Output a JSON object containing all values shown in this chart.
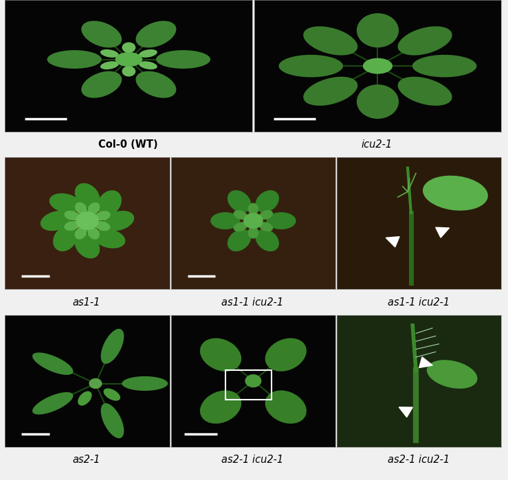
{
  "figure_width": 7.39,
  "figure_height": 6.99,
  "background_color": "#f0f0f0",
  "bg_colors": {
    "0_0": "#050505",
    "0_1": "#050505",
    "1_0": "#3a2010",
    "1_1": "#352010",
    "1_2": "#2a1a0a",
    "2_0": "#050505",
    "2_1": "#050505",
    "2_2": "#1a2a10"
  },
  "plant_colors": {
    "0_0": "#3c8232",
    "0_1": "#3a7a2d",
    "1_0": "#378c28",
    "1_1": "#328228",
    "1_2": "#2d8c23",
    "2_0": "#3c8732",
    "2_1": "#378028",
    "2_2": "#328228"
  },
  "labels": {
    "0_0": "Col-0 (WT)",
    "0_1": "icu2-1",
    "1_0": "as1-1",
    "1_1": "as1-1 icu2-1",
    "1_2": "as1-1 icu2-1",
    "2_0": "as2-1",
    "2_1": "as2-1 icu2-1",
    "2_2": "as2-1 icu2-1"
  },
  "italic": {
    "0_0": false,
    "0_1": true,
    "1_0": true,
    "1_1": true,
    "1_2": true,
    "2_0": true,
    "2_1": true,
    "2_2": true
  },
  "label_fontsize": 10.5,
  "stem_color": "#1a4a10",
  "center_color": "#5ab04a",
  "scale_bar_color": "#ffffff",
  "arrowhead_color": "#ffffff",
  "box_color": "#ffffff"
}
